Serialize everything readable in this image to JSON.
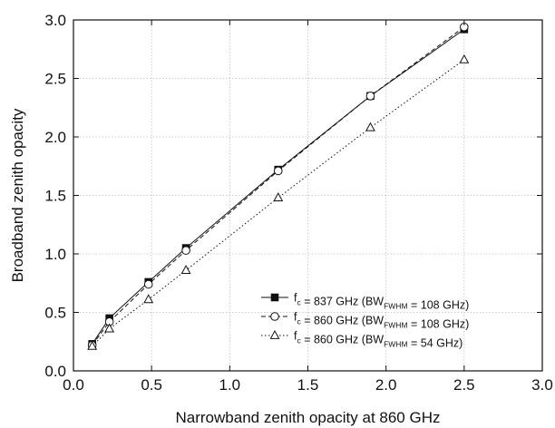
{
  "chart_data": {
    "type": "line",
    "xlabel": "Narrowband zenith opacity at 860 GHz",
    "ylabel": "Broadband zenith opacity",
    "xlim": [
      0.0,
      3.0
    ],
    "ylim": [
      0.0,
      3.0
    ],
    "xticks": [
      "0.0",
      "0.5",
      "1.0",
      "1.5",
      "2.0",
      "2.5",
      "3.0"
    ],
    "yticks": [
      "0.0",
      "0.5",
      "1.0",
      "1.5",
      "2.0",
      "2.5",
      "3.0"
    ],
    "grid": true,
    "legend_position": "lower-right",
    "x": [
      0.12,
      0.23,
      0.48,
      0.72,
      1.31,
      1.9,
      2.5
    ],
    "series": [
      {
        "legend": {
          "pre": "f",
          "sub": "c",
          "mid": " = 837 GHz (BW",
          "sub2": "FWHM",
          "post": " = 108 GHz)"
        },
        "marker": "filled-square",
        "line": "solid",
        "values": [
          0.23,
          0.45,
          0.76,
          1.05,
          1.72,
          2.35,
          2.92
        ]
      },
      {
        "legend": {
          "pre": "f",
          "sub": "c",
          "mid": " = 860 GHz (BW",
          "sub2": "FWHM",
          "post": " = 108 GHz)"
        },
        "marker": "open-circle",
        "line": "dashed",
        "values": [
          0.22,
          0.42,
          0.74,
          1.03,
          1.71,
          2.35,
          2.94
        ]
      },
      {
        "legend": {
          "pre": "f",
          "sub": "c",
          "mid": " = 860 GHz (BW",
          "sub2": "FWHM",
          "post": " = 54 GHz)"
        },
        "marker": "open-triangle",
        "line": "dotted",
        "values": [
          0.21,
          0.36,
          0.61,
          0.86,
          1.48,
          2.08,
          2.66
        ]
      }
    ]
  }
}
